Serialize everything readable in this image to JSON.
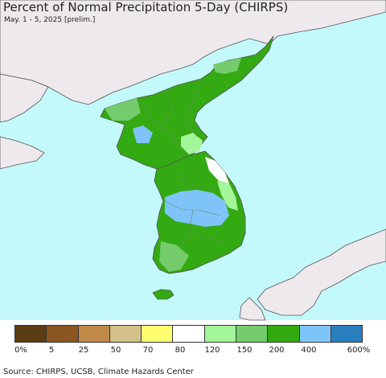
{
  "title": "Percent of Normal Precipitation 5-Day (CHIRPS)",
  "subtitle": "May. 1 - 5, 2025 [prelim.]",
  "source": "Source: CHIRPS, UCSB, Climate Hazards Center",
  "colors": {
    "ocean": "#c4f9fb",
    "foreign_land": "#eee9ec",
    "border": "#555555",
    "province": "#6a8a6a"
  },
  "legend": {
    "swatches": [
      {
        "color": "#5a3d12"
      },
      {
        "color": "#8a5722"
      },
      {
        "color": "#c08a48"
      },
      {
        "color": "#d3c08a"
      },
      {
        "color": "#ffff70"
      },
      {
        "color": "#ffffff"
      },
      {
        "color": "#a3f59a"
      },
      {
        "color": "#74cc6c"
      },
      {
        "color": "#33aa11"
      },
      {
        "color": "#7fc4f8"
      },
      {
        "color": "#2a7fbf"
      }
    ],
    "ticks": [
      "0%",
      "5",
      "25",
      "50",
      "70",
      "80",
      "120",
      "150",
      "200",
      "400",
      "600%"
    ]
  }
}
